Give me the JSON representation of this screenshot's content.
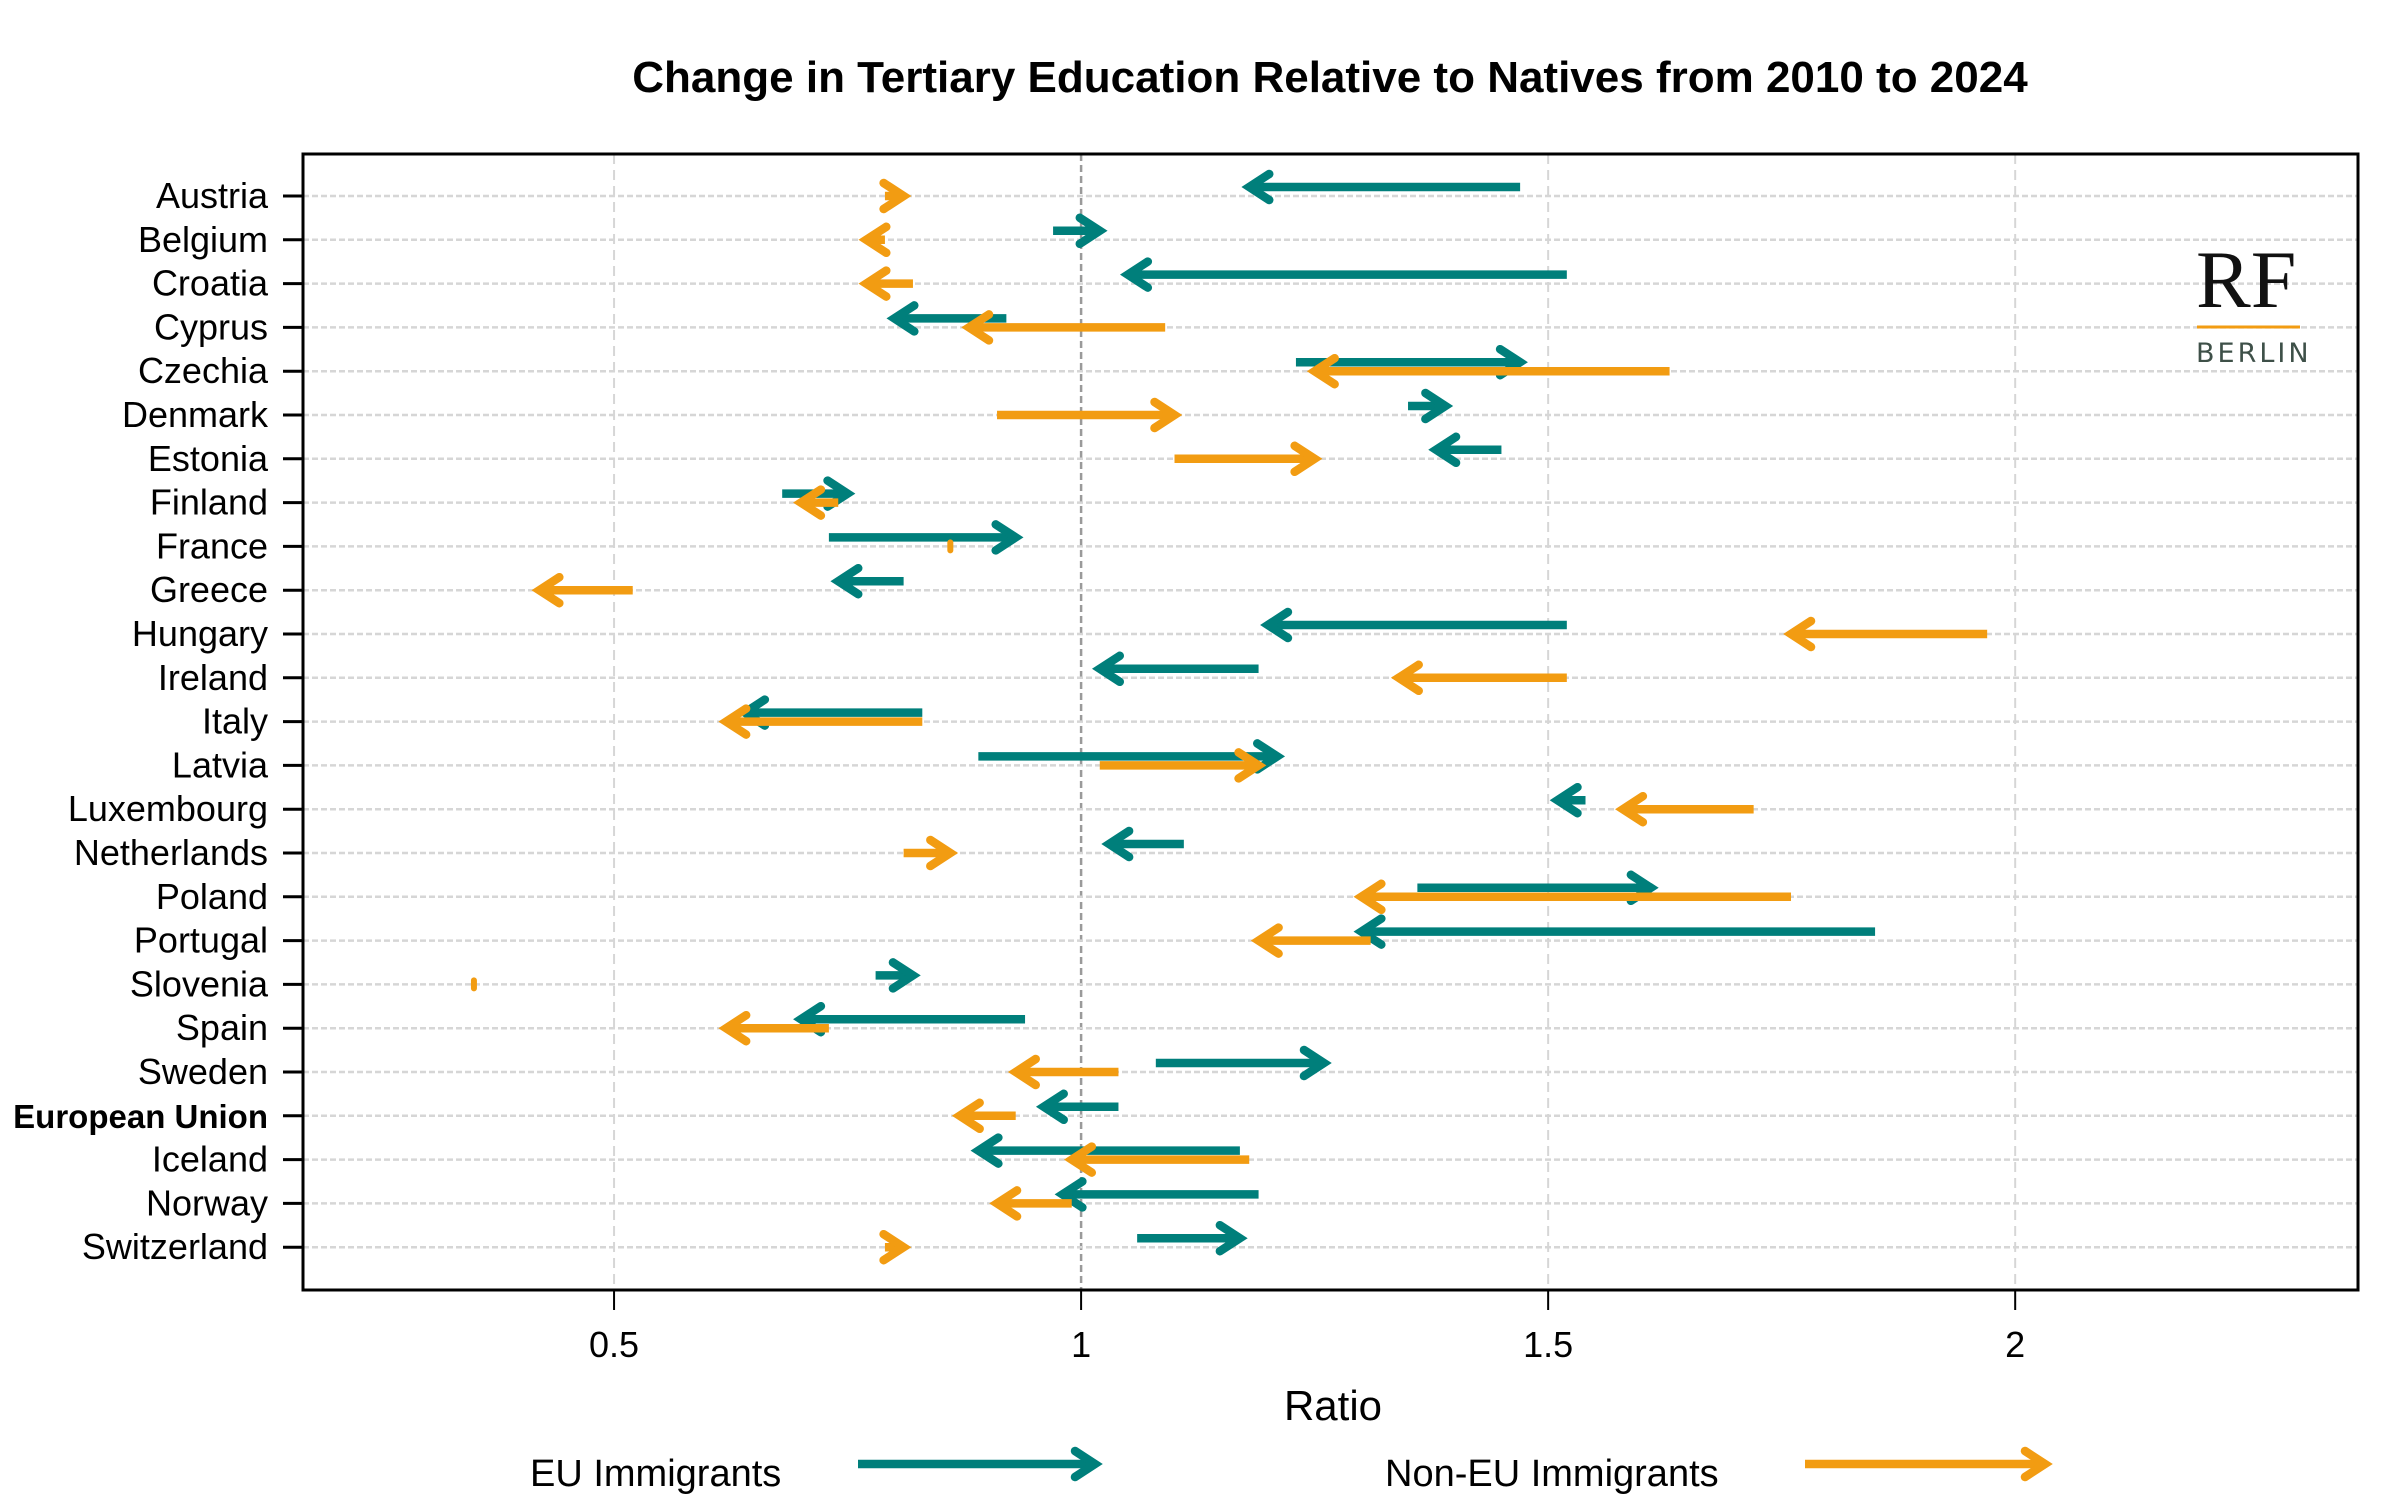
{
  "chart_data": {
    "type": "arrow",
    "title": "Change in Tertiary Education Relative to Natives from 2010 to 2024",
    "xlabel": "Ratio",
    "ylabel": "",
    "xlim": [
      0.167,
      2.367
    ],
    "xticks": [
      0.5,
      1,
      1.5,
      2
    ],
    "xtick_labels": [
      "0.5",
      "1",
      "1.5",
      "2"
    ],
    "reference_line": 1,
    "grid": true,
    "legend_position": "bottom",
    "categories": [
      "Austria",
      "Belgium",
      "Croatia",
      "Cyprus",
      "Czechia",
      "Denmark",
      "Estonia",
      "Finland",
      "France",
      "Greece",
      "Hungary",
      "Ireland",
      "Italy",
      "Latvia",
      "Luxembourg",
      "Netherlands",
      "Poland",
      "Portugal",
      "Slovenia",
      "Spain",
      "Sweden",
      "European Union",
      "Iceland",
      "Norway",
      "Switzerland"
    ],
    "bold_categories": [
      "European Union"
    ],
    "series": [
      {
        "name": "EU Immigrants",
        "color": "#007f7b",
        "from_2010": [
          1.47,
          0.97,
          1.52,
          0.92,
          1.23,
          1.35,
          1.45,
          0.68,
          0.73,
          0.81,
          1.52,
          1.19,
          0.83,
          0.89,
          1.54,
          1.11,
          1.36,
          1.85,
          0.78,
          0.94,
          1.08,
          1.04,
          1.17,
          1.19,
          1.06
        ],
        "to_2024": [
          1.18,
          1.02,
          1.05,
          0.8,
          1.47,
          1.39,
          1.38,
          0.75,
          0.93,
          0.74,
          1.2,
          1.02,
          0.64,
          1.21,
          1.51,
          1.03,
          1.61,
          1.3,
          0.82,
          0.7,
          1.26,
          0.96,
          0.89,
          0.98,
          1.17
        ]
      },
      {
        "name": "Non-EU Immigrants",
        "color": "#f29c12",
        "from_2010": [
          0.79,
          0.79,
          0.82,
          1.09,
          1.63,
          0.91,
          1.1,
          0.74,
          0.86,
          0.52,
          1.97,
          1.52,
          0.83,
          1.02,
          1.72,
          0.81,
          1.76,
          1.31,
          0.35,
          0.73,
          1.04,
          0.93,
          1.18,
          0.99,
          0.79
        ],
        "to_2024": [
          0.81,
          0.77,
          0.77,
          0.88,
          1.25,
          1.1,
          1.25,
          0.7,
          0.86,
          0.42,
          1.76,
          1.34,
          0.62,
          1.19,
          1.58,
          0.86,
          1.3,
          1.19,
          0.35,
          0.62,
          0.93,
          0.87,
          0.99,
          0.91,
          0.81
        ]
      }
    ]
  },
  "logo": {
    "top": "RF",
    "bottom": "BERLIN"
  }
}
